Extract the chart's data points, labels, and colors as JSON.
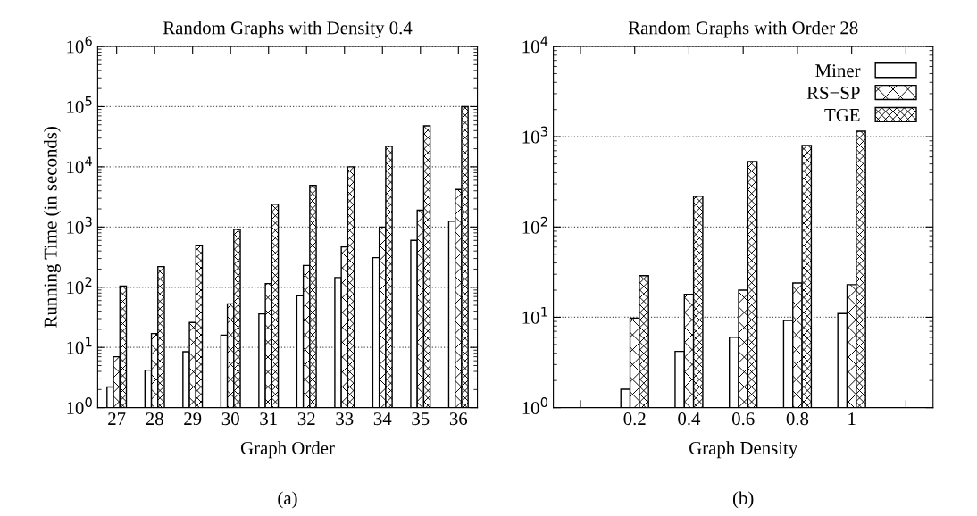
{
  "chart_data": [
    {
      "type": "bar",
      "title": "Random Graphs with Density 0.4",
      "xlabel": "Graph Order",
      "ylabel": "Running Time (in seconds)",
      "annotations": [
        "(a)"
      ],
      "categories": [
        "27",
        "28",
        "29",
        "30",
        "31",
        "32",
        "33",
        "34",
        "35",
        "36"
      ],
      "series": [
        {
          "color": "#ffffff",
          "values": [
            2.2,
            4.2,
            8.5,
            16,
            36,
            72,
            145,
            310,
            600,
            1250
          ]
        },
        {
          "color": "#000000",
          "values": [
            7,
            17,
            26,
            53,
            115,
            230,
            470,
            1000,
            1900,
            4200
          ]
        },
        {
          "color": "#000000",
          "values": [
            105,
            220,
            500,
            920,
            2400,
            4900,
            10000,
            22000,
            48000,
            100000
          ]
        }
      ],
      "log": true,
      "ylim": [
        1,
        1000000
      ],
      "yticks": [
        {
          "value": 1,
          "label": "10$^{0}$"
        },
        {
          "value": 10,
          "label": "10$^{1}$"
        },
        {
          "value": 100,
          "label": "10$^{2}$"
        },
        {
          "value": 1000,
          "label": "10$^{3}$"
        },
        {
          "value": 10000,
          "label": "10$^{4}$"
        },
        {
          "value": 100000,
          "label": "10$^{5}$"
        },
        {
          "value": 1000000,
          "label": "10$^{6}$"
        }
      ],
      "grid": "y",
      "legend": false
    },
    {
      "type": "bar",
      "title": "Random Graphs with Order 28",
      "xlabel": "Graph Density",
      "annotations": [
        "(b)"
      ],
      "categories": [
        null,
        "0.2",
        "0.4",
        "0.6",
        "0.8",
        "1",
        null
      ],
      "series": [
        {
          "name": "Miner",
          "color": "#ffffff",
          "values": [
            null,
            1.6,
            4.2,
            6,
            9.2,
            11,
            null
          ]
        },
        {
          "name": "RS−SP",
          "color": "#000000",
          "values": [
            null,
            9.8,
            18,
            20,
            24,
            23,
            null
          ]
        },
        {
          "name": "TGE",
          "color": "#000000",
          "values": [
            null,
            29,
            220,
            530,
            800,
            1150,
            null
          ]
        }
      ],
      "log": true,
      "ylim": [
        1,
        10000
      ],
      "yticks": [
        {
          "value": 1,
          "label": "10$^{0}$"
        },
        {
          "value": 10,
          "label": "10$^{1}$"
        },
        {
          "value": 100,
          "label": "10$^{2}$"
        },
        {
          "value": 1000,
          "label": "10$^{3}$"
        },
        {
          "value": 10000,
          "label": "10$^{4}$"
        }
      ],
      "grid": "y",
      "legend": "top right"
    }
  ]
}
